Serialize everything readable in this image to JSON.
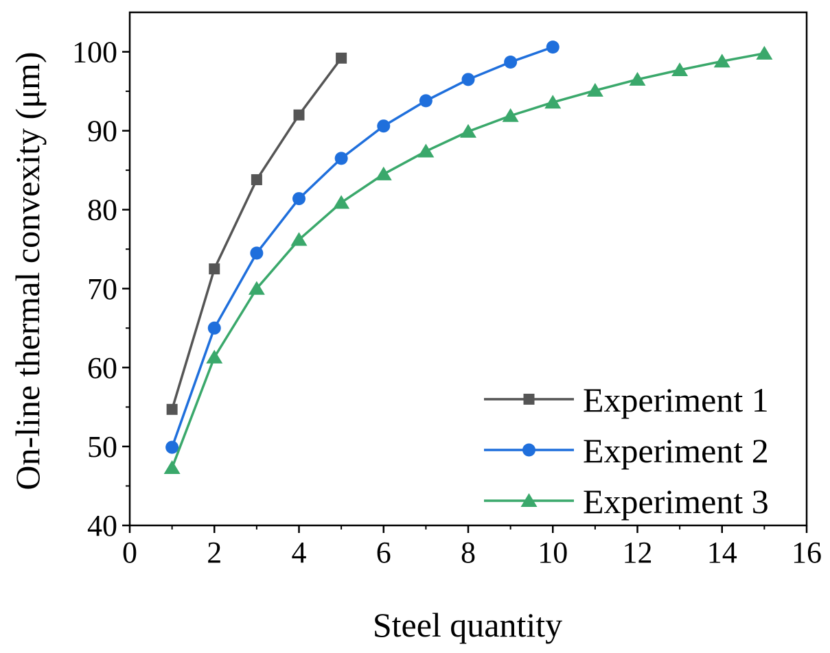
{
  "chart_data": {
    "type": "line",
    "title": "",
    "xlabel": "Steel quantity",
    "ylabel": "On-line thermal convexity (μm)",
    "xlim": [
      0,
      16
    ],
    "ylim": [
      40,
      105
    ],
    "xticks": [
      0,
      2,
      4,
      6,
      8,
      10,
      12,
      14,
      16
    ],
    "yticks": [
      40,
      50,
      60,
      70,
      80,
      90,
      100
    ],
    "x_tick_labels": [
      "0",
      "2",
      "4",
      "6",
      "8",
      "10",
      "12",
      "14",
      "16"
    ],
    "y_tick_labels": [
      "40",
      "50",
      "60",
      "70",
      "80",
      "90",
      "100"
    ],
    "legend_position": "bottom-right",
    "grid": false,
    "series": [
      {
        "name": "Experiment 1",
        "marker": "square",
        "color": "#555555",
        "x": [
          1,
          2,
          3,
          4,
          5
        ],
        "values": [
          54.7,
          72.5,
          83.8,
          92.0,
          99.2
        ]
      },
      {
        "name": "Experiment 2",
        "marker": "circle",
        "color": "#1f6fdc",
        "x": [
          1,
          2,
          3,
          4,
          5,
          6,
          7,
          8,
          9,
          10
        ],
        "values": [
          49.9,
          65.0,
          74.5,
          81.4,
          86.5,
          90.6,
          93.8,
          96.5,
          98.7,
          100.6
        ]
      },
      {
        "name": "Experiment 3",
        "marker": "triangle",
        "color": "#3aa86b",
        "x": [
          1,
          2,
          3,
          4,
          5,
          6,
          7,
          8,
          9,
          10,
          11,
          12,
          13,
          14,
          15
        ],
        "values": [
          47.3,
          61.3,
          70.0,
          76.2,
          80.9,
          84.5,
          87.4,
          89.9,
          91.9,
          93.6,
          95.1,
          96.5,
          97.7,
          98.8,
          99.8
        ]
      }
    ]
  }
}
